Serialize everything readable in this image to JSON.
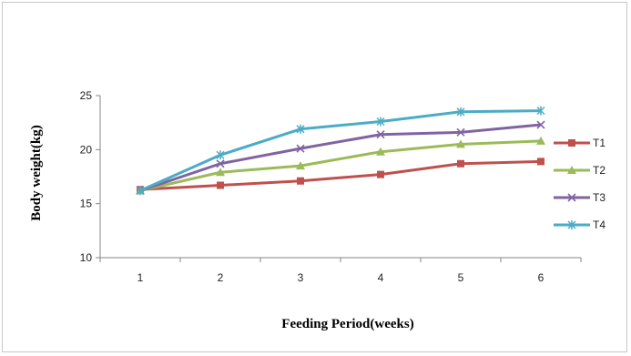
{
  "chart_data": {
    "type": "line",
    "title": "",
    "xlabel": "Feeding  Period(weeks)",
    "ylabel": "Body weight(kg)",
    "categories": [
      "1",
      "2",
      "3",
      "4",
      "5",
      "6"
    ],
    "ylim": [
      10,
      25
    ],
    "yticks": [
      "10",
      "15",
      "20",
      "25"
    ],
    "grid": false,
    "legend_position": "right",
    "series": [
      {
        "name": "T1",
        "values": [
          16.3,
          16.7,
          17.1,
          17.7,
          18.7,
          18.9
        ],
        "color": "#c0504d",
        "marker": "square"
      },
      {
        "name": "T2",
        "values": [
          16.2,
          17.9,
          18.5,
          19.8,
          20.5,
          20.8
        ],
        "color": "#9bbb59",
        "marker": "triangle"
      },
      {
        "name": "T3",
        "values": [
          16.2,
          18.7,
          20.1,
          21.4,
          21.6,
          22.3
        ],
        "color": "#8064a2",
        "marker": "x"
      },
      {
        "name": "T4",
        "values": [
          16.2,
          19.5,
          21.9,
          22.6,
          23.5,
          23.6
        ],
        "color": "#4bacc6",
        "marker": "star"
      }
    ]
  }
}
